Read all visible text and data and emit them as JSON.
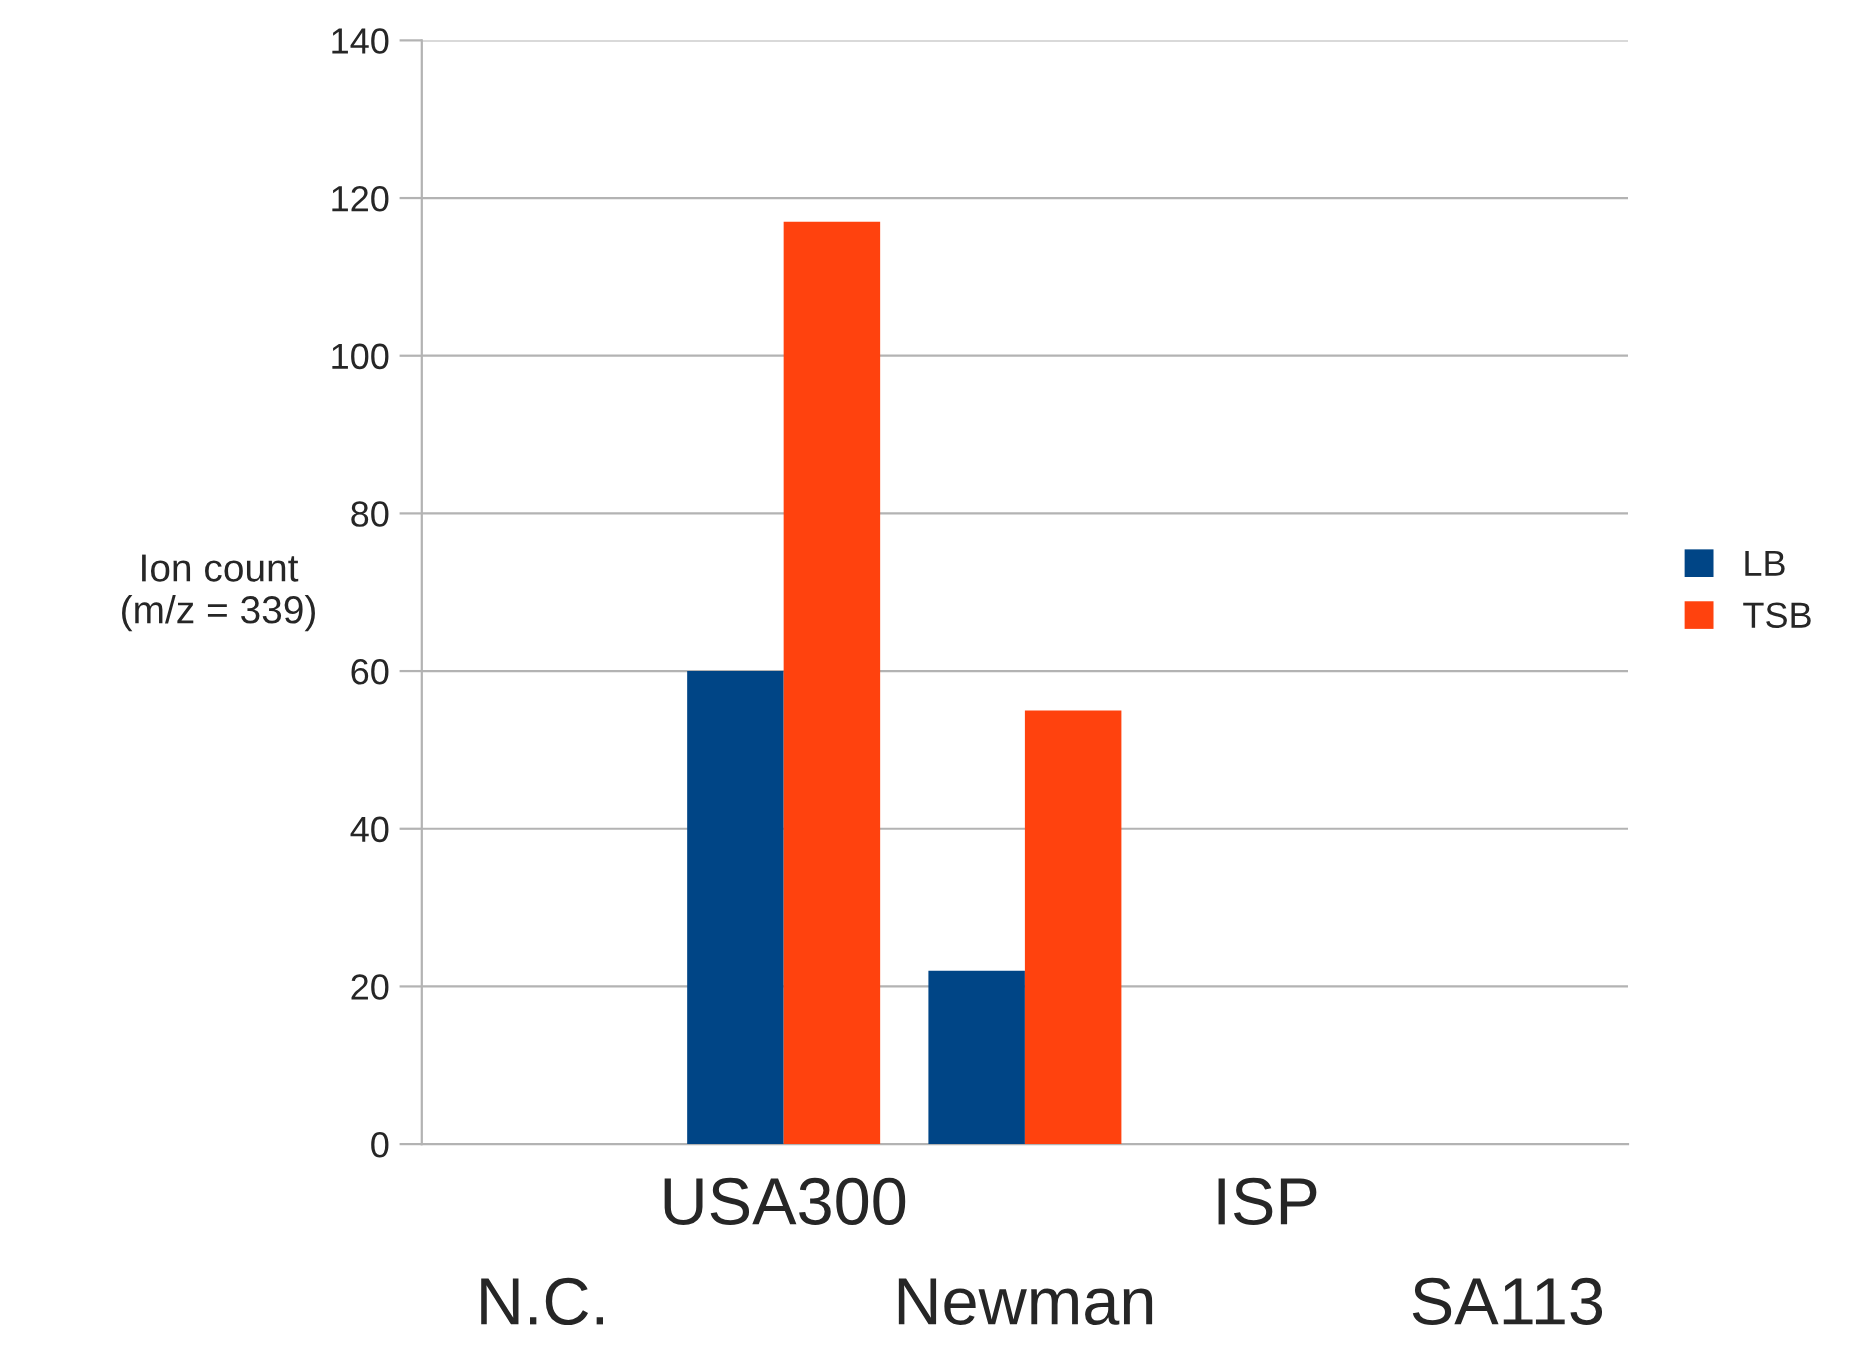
{
  "chart_data": {
    "type": "bar",
    "ylabel": "Ion count\n(m/z = 339)",
    "categories": [
      "N.C.",
      "USA300",
      "Newman",
      "ISP",
      "SA113"
    ],
    "series": [
      {
        "name": "LB",
        "color": "#004586",
        "values": [
          0,
          60,
          22,
          0,
          0
        ]
      },
      {
        "name": "TSB",
        "color": "#ff420e",
        "values": [
          0,
          117,
          55,
          0,
          0
        ]
      }
    ],
    "ylim": [
      0,
      140
    ],
    "yticks": [
      0,
      20,
      40,
      60,
      80,
      100,
      120,
      140
    ],
    "grid": "y",
    "legend": "right"
  }
}
